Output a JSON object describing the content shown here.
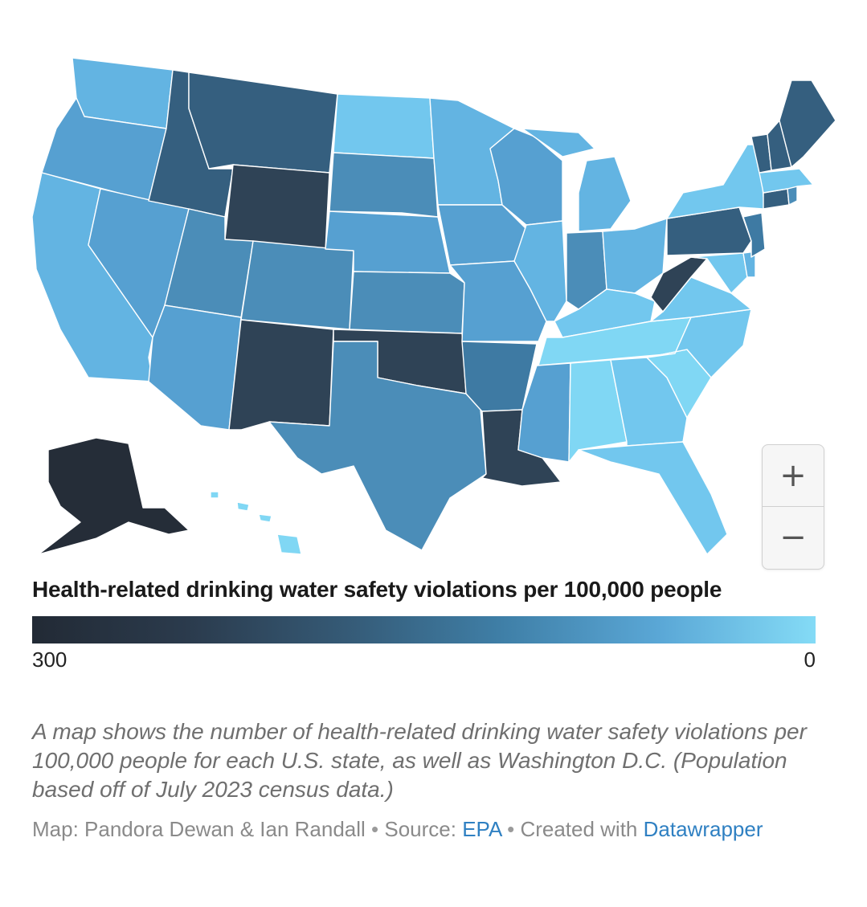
{
  "map": {
    "title": "Health-related drinking water safety violations per 100,000 people",
    "legend": {
      "min_label": "300",
      "max_label": "0",
      "gradient": [
        "#222a35",
        "#2b3b4d",
        "#355a76",
        "#3f7fa7",
        "#5aa7d6",
        "#84dbf6"
      ]
    },
    "colors": {
      "darkest": "#252d38",
      "very_dark": "#2f4356",
      "dark": "#355f7f",
      "mid_dark": "#3e7aa3",
      "mid": "#4b8db8",
      "medium": "#56a0d1",
      "light": "#63b4e2",
      "lighter": "#72c7ee",
      "lightest": "#80d7f4",
      "border": "#ffffff"
    },
    "states": [
      {
        "id": "WA",
        "level": "light"
      },
      {
        "id": "OR",
        "level": "medium"
      },
      {
        "id": "CA",
        "level": "light"
      },
      {
        "id": "ID",
        "level": "dark"
      },
      {
        "id": "NV",
        "level": "medium"
      },
      {
        "id": "MT",
        "level": "dark"
      },
      {
        "id": "WY",
        "level": "very_dark"
      },
      {
        "id": "UT",
        "level": "mid"
      },
      {
        "id": "AZ",
        "level": "medium"
      },
      {
        "id": "CO",
        "level": "mid"
      },
      {
        "id": "NM",
        "level": "very_dark"
      },
      {
        "id": "ND",
        "level": "lighter"
      },
      {
        "id": "SD",
        "level": "mid"
      },
      {
        "id": "NE",
        "level": "medium"
      },
      {
        "id": "KS",
        "level": "mid"
      },
      {
        "id": "OK",
        "level": "very_dark"
      },
      {
        "id": "TX",
        "level": "mid"
      },
      {
        "id": "MN",
        "level": "light"
      },
      {
        "id": "IA",
        "level": "medium"
      },
      {
        "id": "MO",
        "level": "medium"
      },
      {
        "id": "AR",
        "level": "mid_dark"
      },
      {
        "id": "LA",
        "level": "very_dark"
      },
      {
        "id": "WI",
        "level": "medium"
      },
      {
        "id": "IL",
        "level": "light"
      },
      {
        "id": "MI",
        "level": "light"
      },
      {
        "id": "IN",
        "level": "mid"
      },
      {
        "id": "OH",
        "level": "light"
      },
      {
        "id": "KY",
        "level": "lighter"
      },
      {
        "id": "TN",
        "level": "lightest"
      },
      {
        "id": "MS",
        "level": "medium"
      },
      {
        "id": "AL",
        "level": "lightest"
      },
      {
        "id": "GA",
        "level": "lighter"
      },
      {
        "id": "FL",
        "level": "lighter"
      },
      {
        "id": "SC",
        "level": "lightest"
      },
      {
        "id": "NC",
        "level": "lighter"
      },
      {
        "id": "VA",
        "level": "lighter"
      },
      {
        "id": "WV",
        "level": "very_dark"
      },
      {
        "id": "PA",
        "level": "dark"
      },
      {
        "id": "NY",
        "level": "lighter"
      },
      {
        "id": "VT",
        "level": "dark"
      },
      {
        "id": "NH",
        "level": "dark"
      },
      {
        "id": "ME",
        "level": "dark"
      },
      {
        "id": "MA",
        "level": "lighter"
      },
      {
        "id": "CT",
        "level": "dark"
      },
      {
        "id": "RI",
        "level": "mid"
      },
      {
        "id": "NJ",
        "level": "mid_dark"
      },
      {
        "id": "DE",
        "level": "light"
      },
      {
        "id": "MD",
        "level": "lighter"
      },
      {
        "id": "AK",
        "level": "darkest"
      },
      {
        "id": "HI",
        "level": "lightest"
      }
    ],
    "zoom": {
      "in_label": "+",
      "out_label": "−"
    }
  },
  "description": "A map shows the number of health-related drinking water safety violations per 100,000 people for each U.S. state, as well as Washington D.C. (Population based off of July 2023 census data.)",
  "footer": {
    "map_prefix": "Map: Pandora Dewan & Ian Randall",
    "separator": " • ",
    "source_prefix": "Source: ",
    "source_link": "EPA",
    "created_prefix": "Created with ",
    "created_link": "Datawrapper"
  }
}
